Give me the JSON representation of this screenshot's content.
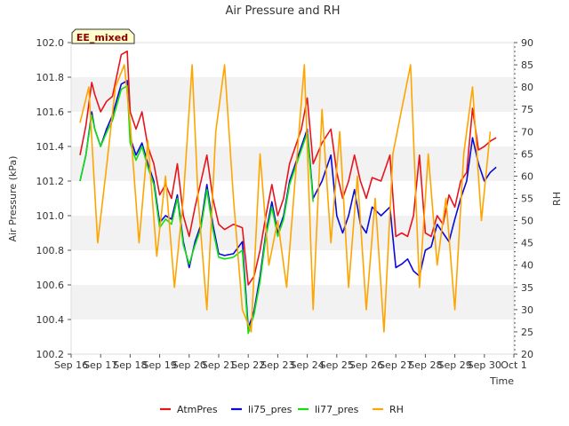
{
  "chart_data": {
    "type": "line",
    "title": "Air Pressure and RH",
    "badge": "EE_mixed",
    "xlabel": "Time",
    "ylabel_left": "Air Pressure (kPa)",
    "ylabel_right": "RH",
    "x_ticks": [
      "Sep 16",
      "Sep 17",
      "Sep 18",
      "Sep 19",
      "Sep 20",
      "Sep 21",
      "Sep 22",
      "Sep 23",
      "Sep 24",
      "Sep 25",
      "Sep 26",
      "Sep 27",
      "Sep 28",
      "Sep 29",
      "Sep 30",
      "Oct 1"
    ],
    "y_left_ticks": [
      "100.2",
      "100.4",
      "100.6",
      "100.8",
      "101.0",
      "101.2",
      "101.4",
      "101.6",
      "101.8",
      "102.0"
    ],
    "y_right_ticks": [
      "20",
      "25",
      "30",
      "35",
      "40",
      "45",
      "50",
      "55",
      "60",
      "65",
      "70",
      "75",
      "80",
      "85",
      "90"
    ],
    "ylim_left": [
      100.2,
      102.0
    ],
    "ylim_right": [
      20,
      90
    ],
    "xlim": [
      0,
      15
    ],
    "x_unit": "days since Sep 16",
    "grid": "horizontal bands",
    "legend_position": "bottom",
    "series": [
      {
        "name": "AtmPres",
        "axis": "left",
        "color": "#e8141c",
        "x": [
          0.3,
          0.5,
          0.7,
          0.8,
          1.0,
          1.2,
          1.4,
          1.7,
          1.9,
          2.0,
          2.2,
          2.4,
          2.6,
          2.8,
          3.0,
          3.2,
          3.4,
          3.6,
          3.8,
          4.0,
          4.2,
          4.4,
          4.6,
          4.8,
          5.0,
          5.2,
          5.5,
          5.8,
          6.0,
          6.2,
          6.4,
          6.6,
          6.8,
          7.0,
          7.2,
          7.4,
          7.6,
          7.8,
          8.0,
          8.2,
          8.5,
          8.8,
          9.0,
          9.2,
          9.4,
          9.6,
          9.8,
          10.0,
          10.2,
          10.5,
          10.8,
          11.0,
          11.2,
          11.4,
          11.6,
          11.8,
          12.0,
          12.2,
          12.4,
          12.6,
          12.8,
          13.0,
          13.2,
          13.4,
          13.6,
          13.8,
          14.0,
          14.2,
          14.4
        ],
        "y": [
          101.35,
          101.52,
          101.77,
          101.7,
          101.6,
          101.66,
          101.69,
          101.93,
          101.95,
          101.6,
          101.5,
          101.6,
          101.4,
          101.3,
          101.12,
          101.18,
          101.1,
          101.3,
          101.0,
          100.88,
          101.05,
          101.2,
          101.35,
          101.1,
          100.95,
          100.92,
          100.95,
          100.93,
          100.6,
          100.65,
          100.8,
          101.0,
          101.18,
          101.0,
          101.1,
          101.3,
          101.4,
          101.5,
          101.68,
          101.3,
          101.42,
          101.5,
          101.25,
          101.1,
          101.2,
          101.35,
          101.2,
          101.1,
          101.22,
          101.2,
          101.35,
          100.88,
          100.9,
          100.88,
          101.0,
          101.35,
          100.9,
          100.88,
          101.0,
          100.95,
          101.12,
          101.05,
          101.2,
          101.25,
          101.62,
          101.38,
          101.4,
          101.43,
          101.45
        ]
      },
      {
        "name": "li75_pres",
        "axis": "left",
        "color": "#0a0ad8",
        "x": [
          0.3,
          0.5,
          0.7,
          0.8,
          1.0,
          1.2,
          1.4,
          1.7,
          1.9,
          2.0,
          2.2,
          2.4,
          2.6,
          2.8,
          3.0,
          3.2,
          3.4,
          3.6,
          3.8,
          4.0,
          4.2,
          4.4,
          4.6,
          4.8,
          5.0,
          5.2,
          5.5,
          5.8,
          6.0,
          6.2,
          6.4,
          6.6,
          6.8,
          7.0,
          7.2,
          7.4,
          7.6,
          7.8,
          8.0,
          8.2,
          8.5,
          8.8,
          9.0,
          9.2,
          9.4,
          9.6,
          9.8,
          10.0,
          10.2,
          10.5,
          10.8,
          11.0,
          11.2,
          11.4,
          11.6,
          11.8,
          12.0,
          12.2,
          12.4,
          12.6,
          12.8,
          13.0,
          13.2,
          13.4,
          13.6,
          13.8,
          14.0,
          14.2,
          14.4
        ],
        "y": [
          101.2,
          101.35,
          101.6,
          101.5,
          101.4,
          101.5,
          101.58,
          101.76,
          101.78,
          101.45,
          101.35,
          101.42,
          101.3,
          101.2,
          100.96,
          101.0,
          100.98,
          101.12,
          100.85,
          100.7,
          100.85,
          100.95,
          101.18,
          100.95,
          100.78,
          100.77,
          100.78,
          100.85,
          100.35,
          100.45,
          100.65,
          100.9,
          101.08,
          100.9,
          101.0,
          101.2,
          101.3,
          101.4,
          101.5,
          101.1,
          101.2,
          101.35,
          101.0,
          100.9,
          101.0,
          101.15,
          100.95,
          100.9,
          101.05,
          101.0,
          101.05,
          100.7,
          100.72,
          100.75,
          100.68,
          100.65,
          100.8,
          100.82,
          100.95,
          100.9,
          100.85,
          100.98,
          101.1,
          101.2,
          101.45,
          101.3,
          101.2,
          101.25,
          101.28
        ]
      },
      {
        "name": "li77_pres",
        "axis": "left",
        "color": "#10e010",
        "x": [
          0.3,
          0.5,
          0.7,
          0.8,
          1.0,
          1.2,
          1.4,
          1.7,
          1.9,
          2.0,
          2.2,
          2.4,
          2.6,
          2.8,
          3.0,
          3.2,
          3.4,
          3.6,
          3.8,
          4.0,
          4.2,
          4.4,
          4.6,
          4.8,
          5.0,
          5.2,
          5.5,
          5.8,
          6.0,
          6.2,
          6.4,
          6.6,
          6.8,
          7.0,
          7.2,
          7.4,
          7.6,
          7.8,
          8.0,
          8.2
        ],
        "y": [
          101.2,
          101.35,
          101.58,
          101.5,
          101.4,
          101.48,
          101.55,
          101.73,
          101.75,
          101.42,
          101.32,
          101.4,
          101.28,
          101.18,
          100.93,
          100.98,
          100.95,
          101.1,
          100.83,
          100.72,
          100.83,
          100.93,
          101.15,
          100.92,
          100.76,
          100.75,
          100.76,
          100.8,
          100.32,
          100.43,
          100.62,
          100.88,
          101.05,
          100.88,
          100.98,
          101.18,
          101.28,
          101.38,
          101.48,
          101.08
        ]
      },
      {
        "name": "RH",
        "axis": "right",
        "color": "#ffa500",
        "x": [
          0.3,
          0.6,
          0.9,
          1.2,
          1.5,
          1.8,
          2.0,
          2.3,
          2.6,
          2.9,
          3.2,
          3.5,
          3.8,
          4.1,
          4.3,
          4.6,
          4.9,
          5.2,
          5.5,
          5.8,
          6.1,
          6.4,
          6.7,
          7.0,
          7.3,
          7.6,
          7.9,
          8.2,
          8.5,
          8.8,
          9.1,
          9.4,
          9.7,
          10.0,
          10.3,
          10.6,
          10.9,
          11.2,
          11.5,
          11.8,
          12.1,
          12.4,
          12.7,
          13.0,
          13.3,
          13.6,
          13.9,
          14.2
        ],
        "y": [
          72,
          80,
          45,
          62,
          80,
          85,
          72,
          45,
          68,
          42,
          60,
          35,
          55,
          85,
          55,
          30,
          70,
          85,
          55,
          30,
          25,
          65,
          40,
          50,
          35,
          60,
          85,
          30,
          75,
          45,
          70,
          35,
          60,
          30,
          55,
          25,
          65,
          75,
          85,
          35,
          65,
          40,
          55,
          30,
          65,
          80,
          50,
          70
        ]
      }
    ]
  }
}
